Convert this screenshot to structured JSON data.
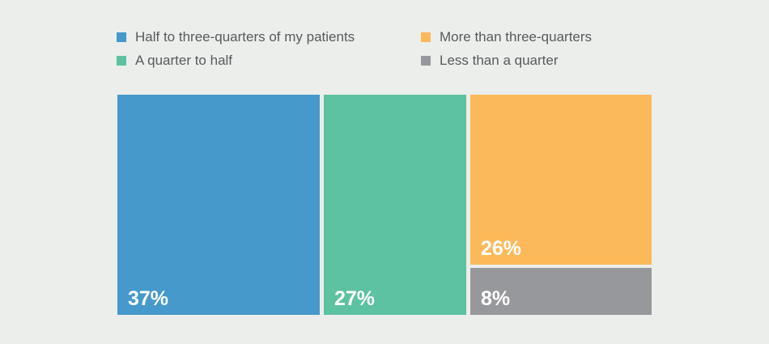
{
  "background_color": "#ECEEEC",
  "legend": {
    "position": "top",
    "text_color": "#58595B",
    "items": [
      {
        "label": "Half to three-quarters of my patients",
        "color": "#4699CB"
      },
      {
        "label": "A quarter to half",
        "color": "#5CC2A1"
      },
      {
        "label": "More than three-quarters",
        "color": "#FCB959"
      },
      {
        "label": "Less than a quarter",
        "color": "#97989B"
      }
    ]
  },
  "chart_data": {
    "type": "bar",
    "variant": "proportional-area (100% treemap-style bar, no axes)",
    "categories": [
      "Half to three-quarters of my patients",
      "A quarter to half",
      "More than three-quarters",
      "Less than a quarter"
    ],
    "values": [
      37,
      27,
      26,
      8
    ],
    "data_labels": [
      "37%",
      "27%",
      "26%",
      "8%"
    ],
    "colors": [
      "#4699CB",
      "#5CC2A1",
      "#FCB959",
      "#97989B"
    ],
    "title": "",
    "xlabel": "",
    "ylabel": "",
    "grid": false,
    "legend_position": "top",
    "layout_note": "Blue (37%) and green (27%) are full-height columns; third column is split with orange (26%) on top and gray (8%) below; value labels sit bottom-left of each segment in white bold text"
  }
}
